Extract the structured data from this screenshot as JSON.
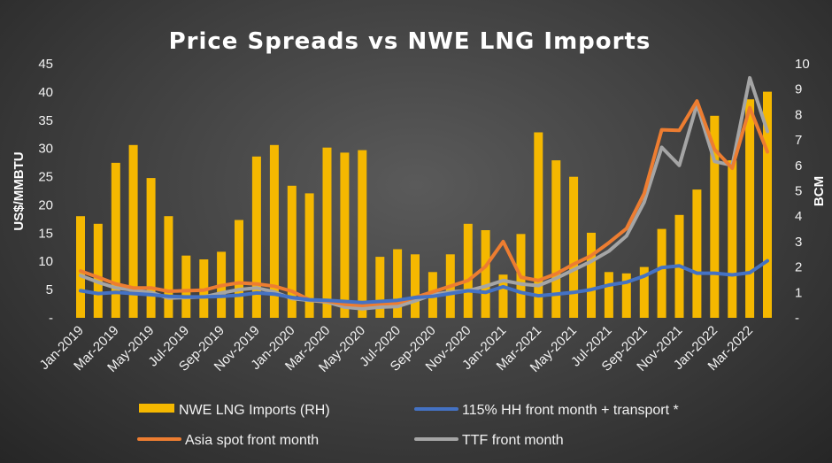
{
  "chart_data": {
    "type": "bar",
    "title": "Price Spreads vs NWE LNG Imports",
    "ylabel": "US$/MMBTU",
    "y2label": "BCM",
    "ylim": [
      0,
      45
    ],
    "y2lim": [
      0,
      10
    ],
    "yticks": [
      "-",
      "5",
      "10",
      "15",
      "20",
      "25",
      "30",
      "35",
      "40",
      "45"
    ],
    "y2ticks": [
      "-",
      "1",
      "2",
      "3",
      "4",
      "5",
      "6",
      "7",
      "8",
      "9",
      "10"
    ],
    "grid": false,
    "legend": "bottom",
    "colors": {
      "bars": "#f5b800",
      "hh": "#4472c4",
      "asia": "#ed7d31",
      "ttf": "#a5a5a5"
    },
    "categories": [
      "Jan-2019",
      "Feb-2019",
      "Mar-2019",
      "Apr-2019",
      "May-2019",
      "Jun-2019",
      "Jul-2019",
      "Aug-2019",
      "Sep-2019",
      "Oct-2019",
      "Nov-2019",
      "Dec-2019",
      "Jan-2020",
      "Feb-2020",
      "Mar-2020",
      "Apr-2020",
      "May-2020",
      "Jun-2020",
      "Jul-2020",
      "Aug-2020",
      "Sep-2020",
      "Oct-2020",
      "Nov-2020",
      "Dec-2020",
      "Jan-2021",
      "Feb-2021",
      "Mar-2021",
      "Apr-2021",
      "May-2021",
      "Jun-2021",
      "Jul-2021",
      "Aug-2021",
      "Sep-2021",
      "Oct-2021",
      "Nov-2021",
      "Dec-2021",
      "Jan-2022",
      "Feb-2022",
      "Mar-2022",
      "Apr-2022"
    ],
    "xtick_labels": [
      "Jan-2019",
      "Mar-2019",
      "May-2019",
      "Jul-2019",
      "Sep-2019",
      "Nov-2019",
      "Jan-2020",
      "Mar-2020",
      "May-2020",
      "Jul-2020",
      "Sep-2020",
      "Nov-2020",
      "Jan-2021",
      "Mar-2021",
      "May-2021",
      "Jul-2021",
      "Sep-2021",
      "Nov-2021",
      "Jan-2022",
      "Mar-2022"
    ],
    "series": [
      {
        "name": "NWE LNG Imports (RH)",
        "type": "bar",
        "axis": "right",
        "values": [
          4.0,
          3.7,
          6.1,
          6.8,
          5.5,
          4.0,
          2.45,
          2.3,
          2.6,
          3.85,
          6.35,
          6.8,
          5.2,
          4.9,
          6.7,
          6.5,
          6.6,
          2.4,
          2.7,
          2.5,
          1.8,
          2.5,
          3.7,
          3.45,
          1.7,
          3.3,
          7.3,
          6.2,
          5.55,
          3.35,
          1.8,
          1.75,
          2.0,
          3.5,
          4.05,
          5.05,
          7.95,
          6.2,
          8.6,
          8.9
        ]
      },
      {
        "name": "115% HH front month + transport *",
        "type": "line",
        "axis": "left",
        "values": [
          4.8,
          4.3,
          4.5,
          4.3,
          4.1,
          3.8,
          3.7,
          3.7,
          3.8,
          4.0,
          4.4,
          4.2,
          3.6,
          3.2,
          3.1,
          2.9,
          2.7,
          2.9,
          3.1,
          3.6,
          3.8,
          4.3,
          4.8,
          4.5,
          5.5,
          4.5,
          3.9,
          4.2,
          4.5,
          5.0,
          5.8,
          6.3,
          7.4,
          8.9,
          9.2,
          7.9,
          7.9,
          7.6,
          8.0,
          10.1
        ]
      },
      {
        "name": "Asia spot front month",
        "type": "line",
        "axis": "left",
        "values": [
          8.3,
          7.2,
          6.0,
          5.3,
          5.3,
          4.7,
          4.8,
          4.9,
          5.7,
          6.2,
          6.0,
          5.6,
          4.7,
          3.2,
          3.0,
          2.4,
          2.2,
          2.5,
          2.6,
          3.6,
          4.6,
          5.6,
          6.6,
          9.1,
          13.5,
          7.2,
          6.6,
          7.8,
          9.5,
          11.0,
          13.3,
          15.8,
          22.0,
          33.3,
          33.2,
          38.4,
          29.8,
          26.5,
          37.2,
          29.4
        ]
      },
      {
        "name": "TTF front month",
        "type": "line",
        "axis": "left",
        "values": [
          7.5,
          6.3,
          5.3,
          4.9,
          4.5,
          3.5,
          3.6,
          3.7,
          4.4,
          5.0,
          5.3,
          4.6,
          3.4,
          3.1,
          2.8,
          1.9,
          1.6,
          1.9,
          2.0,
          3.0,
          4.1,
          4.6,
          4.8,
          5.6,
          6.6,
          6.0,
          5.7,
          7.0,
          8.5,
          10.0,
          11.8,
          14.5,
          20.5,
          30.2,
          27.0,
          37.8,
          27.7,
          27.0,
          42.5,
          33.0
        ]
      }
    ]
  }
}
